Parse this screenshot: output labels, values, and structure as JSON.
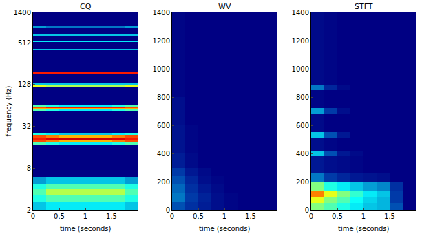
{
  "chart_data": [
    {
      "type": "heatmap",
      "title": "CQ",
      "xlabel": "time (seconds)",
      "ylabel": "frequency (Hz)",
      "log": "y",
      "xlim": [
        0,
        2
      ],
      "ylim": [
        2,
        1400
      ],
      "xticks": [
        0,
        0.5,
        1,
        1.5
      ],
      "yticks": [
        2,
        8,
        32,
        128,
        512,
        1400
      ],
      "zlim": [
        0,
        1
      ],
      "x_edges": [
        0,
        0.25,
        0.5,
        0.75,
        1,
        1.25,
        1.5,
        1.75,
        2
      ],
      "y_edges": [
        2,
        2.6,
        3.2,
        4,
        4.8,
        6,
        17,
        19,
        20,
        22,
        24,
        26,
        52,
        56,
        58,
        62,
        66,
        115,
        120,
        127,
        132,
        185,
        195,
        400,
        420,
        520,
        555,
        640,
        680,
        820,
        880,
        1400
      ],
      "z": [
        [
          0.3,
          0.35,
          0.35,
          0.35,
          0.35,
          0.35,
          0.35,
          0.3
        ],
        [
          0.4,
          0.45,
          0.45,
          0.45,
          0.45,
          0.45,
          0.45,
          0.4
        ],
        [
          0.45,
          0.55,
          0.55,
          0.55,
          0.55,
          0.55,
          0.55,
          0.45
        ],
        [
          0.4,
          0.45,
          0.45,
          0.45,
          0.45,
          0.45,
          0.45,
          0.4
        ],
        [
          0.25,
          0.3,
          0.3,
          0.3,
          0.3,
          0.3,
          0.3,
          0.25
        ],
        [
          0,
          0,
          0,
          0,
          0,
          0,
          0,
          0
        ],
        [
          0.45,
          0.4,
          0.35,
          0.35,
          0.35,
          0.35,
          0.4,
          0.45
        ],
        [
          0.8,
          0.75,
          0.7,
          0.7,
          0.7,
          0.7,
          0.75,
          0.8
        ],
        [
          0.85,
          0.9,
          0.92,
          0.92,
          0.92,
          0.92,
          0.9,
          0.85
        ],
        [
          0.8,
          0.75,
          0.7,
          0.7,
          0.7,
          0.7,
          0.75,
          0.8
        ],
        [
          0.4,
          0.35,
          0.3,
          0.3,
          0.3,
          0.3,
          0.35,
          0.4
        ],
        [
          0,
          0,
          0,
          0,
          0,
          0,
          0,
          0
        ],
        [
          0.45,
          0.4,
          0.35,
          0.35,
          0.35,
          0.35,
          0.4,
          0.45
        ],
        [
          0.7,
          0.7,
          0.7,
          0.7,
          0.7,
          0.7,
          0.7,
          0.7
        ],
        [
          0.8,
          0.85,
          0.85,
          0.85,
          0.85,
          0.85,
          0.85,
          0.8
        ],
        [
          0.45,
          0.4,
          0.35,
          0.35,
          0.35,
          0.35,
          0.4,
          0.45
        ],
        [
          0,
          0,
          0,
          0,
          0,
          0,
          0,
          0
        ],
        [
          0.4,
          0.4,
          0.4,
          0.4,
          0.4,
          0.4,
          0.4,
          0.4
        ],
        [
          0.6,
          0.55,
          0.55,
          0.55,
          0.55,
          0.55,
          0.55,
          0.6
        ],
        [
          0.3,
          0.3,
          0.3,
          0.3,
          0.3,
          0.3,
          0.3,
          0.3
        ],
        [
          0,
          0,
          0,
          0,
          0,
          0,
          0,
          0
        ],
        [
          0.85,
          0.85,
          0.85,
          0.85,
          0.85,
          0.85,
          0.85,
          0.85
        ],
        [
          0,
          0,
          0,
          0,
          0,
          0,
          0,
          0
        ],
        [
          0.3,
          0.3,
          0.3,
          0.3,
          0.3,
          0.3,
          0.3,
          0.3
        ],
        [
          0,
          0,
          0,
          0,
          0,
          0,
          0,
          0
        ],
        [
          0.35,
          0.35,
          0.35,
          0.35,
          0.35,
          0.35,
          0.35,
          0.35
        ],
        [
          0,
          0,
          0,
          0,
          0,
          0,
          0,
          0
        ],
        [
          0.3,
          0.3,
          0.3,
          0.3,
          0.3,
          0.3,
          0.3,
          0.3
        ],
        [
          0,
          0,
          0,
          0,
          0,
          0,
          0,
          0
        ],
        [
          0.25,
          0.2,
          0.2,
          0.2,
          0.2,
          0.2,
          0.2,
          0.25
        ],
        [
          0,
          0,
          0,
          0,
          0,
          0,
          0,
          0
        ]
      ]
    },
    {
      "type": "heatmap",
      "title": "WV",
      "xlabel": "time (seconds)",
      "xlim": [
        0,
        2
      ],
      "ylim": [
        0,
        1400
      ],
      "xticks": [
        0,
        0.5,
        1,
        1.5
      ],
      "yticks": [
        0,
        200,
        400,
        600,
        800,
        1000,
        1200,
        1400
      ],
      "zlim": [
        0,
        1
      ],
      "x_edges": [
        0,
        0.25,
        0.5,
        0.75,
        1,
        1.25,
        1.5,
        1.75,
        2
      ],
      "y_edges": [
        0,
        60,
        120,
        180,
        240,
        300,
        400,
        600,
        800,
        1400
      ],
      "z": [
        [
          0.15,
          0.1,
          0.06,
          0.03,
          0.01,
          0,
          0,
          0
        ],
        [
          0.2,
          0.12,
          0.07,
          0.03,
          0.01,
          0,
          0,
          0
        ],
        [
          0.18,
          0.1,
          0.05,
          0.02,
          0,
          0,
          0,
          0
        ],
        [
          0.15,
          0.08,
          0.03,
          0.01,
          0,
          0,
          0,
          0
        ],
        [
          0.12,
          0.05,
          0.02,
          0,
          0,
          0,
          0,
          0
        ],
        [
          0.06,
          0.02,
          0,
          0,
          0,
          0,
          0,
          0
        ],
        [
          0.04,
          0.01,
          0,
          0,
          0,
          0,
          0,
          0
        ],
        [
          0.03,
          0,
          0,
          0,
          0,
          0,
          0,
          0
        ],
        [
          0.01,
          0,
          0,
          0,
          0,
          0,
          0,
          0
        ]
      ]
    },
    {
      "type": "heatmap",
      "title": "STFT",
      "xlabel": "time (seconds)",
      "xlim": [
        0,
        2
      ],
      "ylim": [
        0,
        1400
      ],
      "xticks": [
        0,
        0.5,
        1,
        1.5
      ],
      "yticks": [
        0,
        200,
        400,
        600,
        800,
        1000,
        1200,
        1400
      ],
      "zlim": [
        0,
        1
      ],
      "x_edges": [
        0,
        0.25,
        0.5,
        0.75,
        1,
        1.25,
        1.5,
        1.75,
        2
      ],
      "y_edges": [
        0,
        50,
        90,
        130,
        200,
        260,
        380,
        420,
        510,
        550,
        680,
        720,
        850,
        890,
        1400
      ],
      "z": [
        [
          0.5,
          0.45,
          0.4,
          0.35,
          0.3,
          0.28,
          0.15,
          0
        ],
        [
          0.6,
          0.5,
          0.45,
          0.38,
          0.32,
          0.28,
          0.12,
          0
        ],
        [
          0.75,
          0.6,
          0.5,
          0.42,
          0.35,
          0.3,
          0.12,
          0
        ],
        [
          0.5,
          0.4,
          0.35,
          0.3,
          0.25,
          0.22,
          0.1,
          0
        ],
        [
          0.2,
          0.12,
          0.08,
          0.05,
          0.04,
          0.03,
          0,
          0
        ],
        [
          0.05,
          0.03,
          0.02,
          0.01,
          0,
          0,
          0,
          0
        ],
        [
          0.3,
          0.15,
          0.05,
          0.02,
          0,
          0,
          0,
          0
        ],
        [
          0.03,
          0.01,
          0,
          0,
          0,
          0,
          0,
          0
        ],
        [
          0.3,
          0.15,
          0.05,
          0,
          0,
          0,
          0,
          0
        ],
        [
          0.02,
          0,
          0,
          0,
          0,
          0,
          0,
          0
        ],
        [
          0.25,
          0.12,
          0.03,
          0,
          0,
          0,
          0,
          0
        ],
        [
          0.01,
          0,
          0,
          0,
          0,
          0,
          0,
          0
        ],
        [
          0.2,
          0.08,
          0.02,
          0,
          0,
          0,
          0,
          0
        ],
        [
          0.02,
          0.01,
          0,
          0,
          0,
          0,
          0,
          0
        ]
      ]
    }
  ]
}
